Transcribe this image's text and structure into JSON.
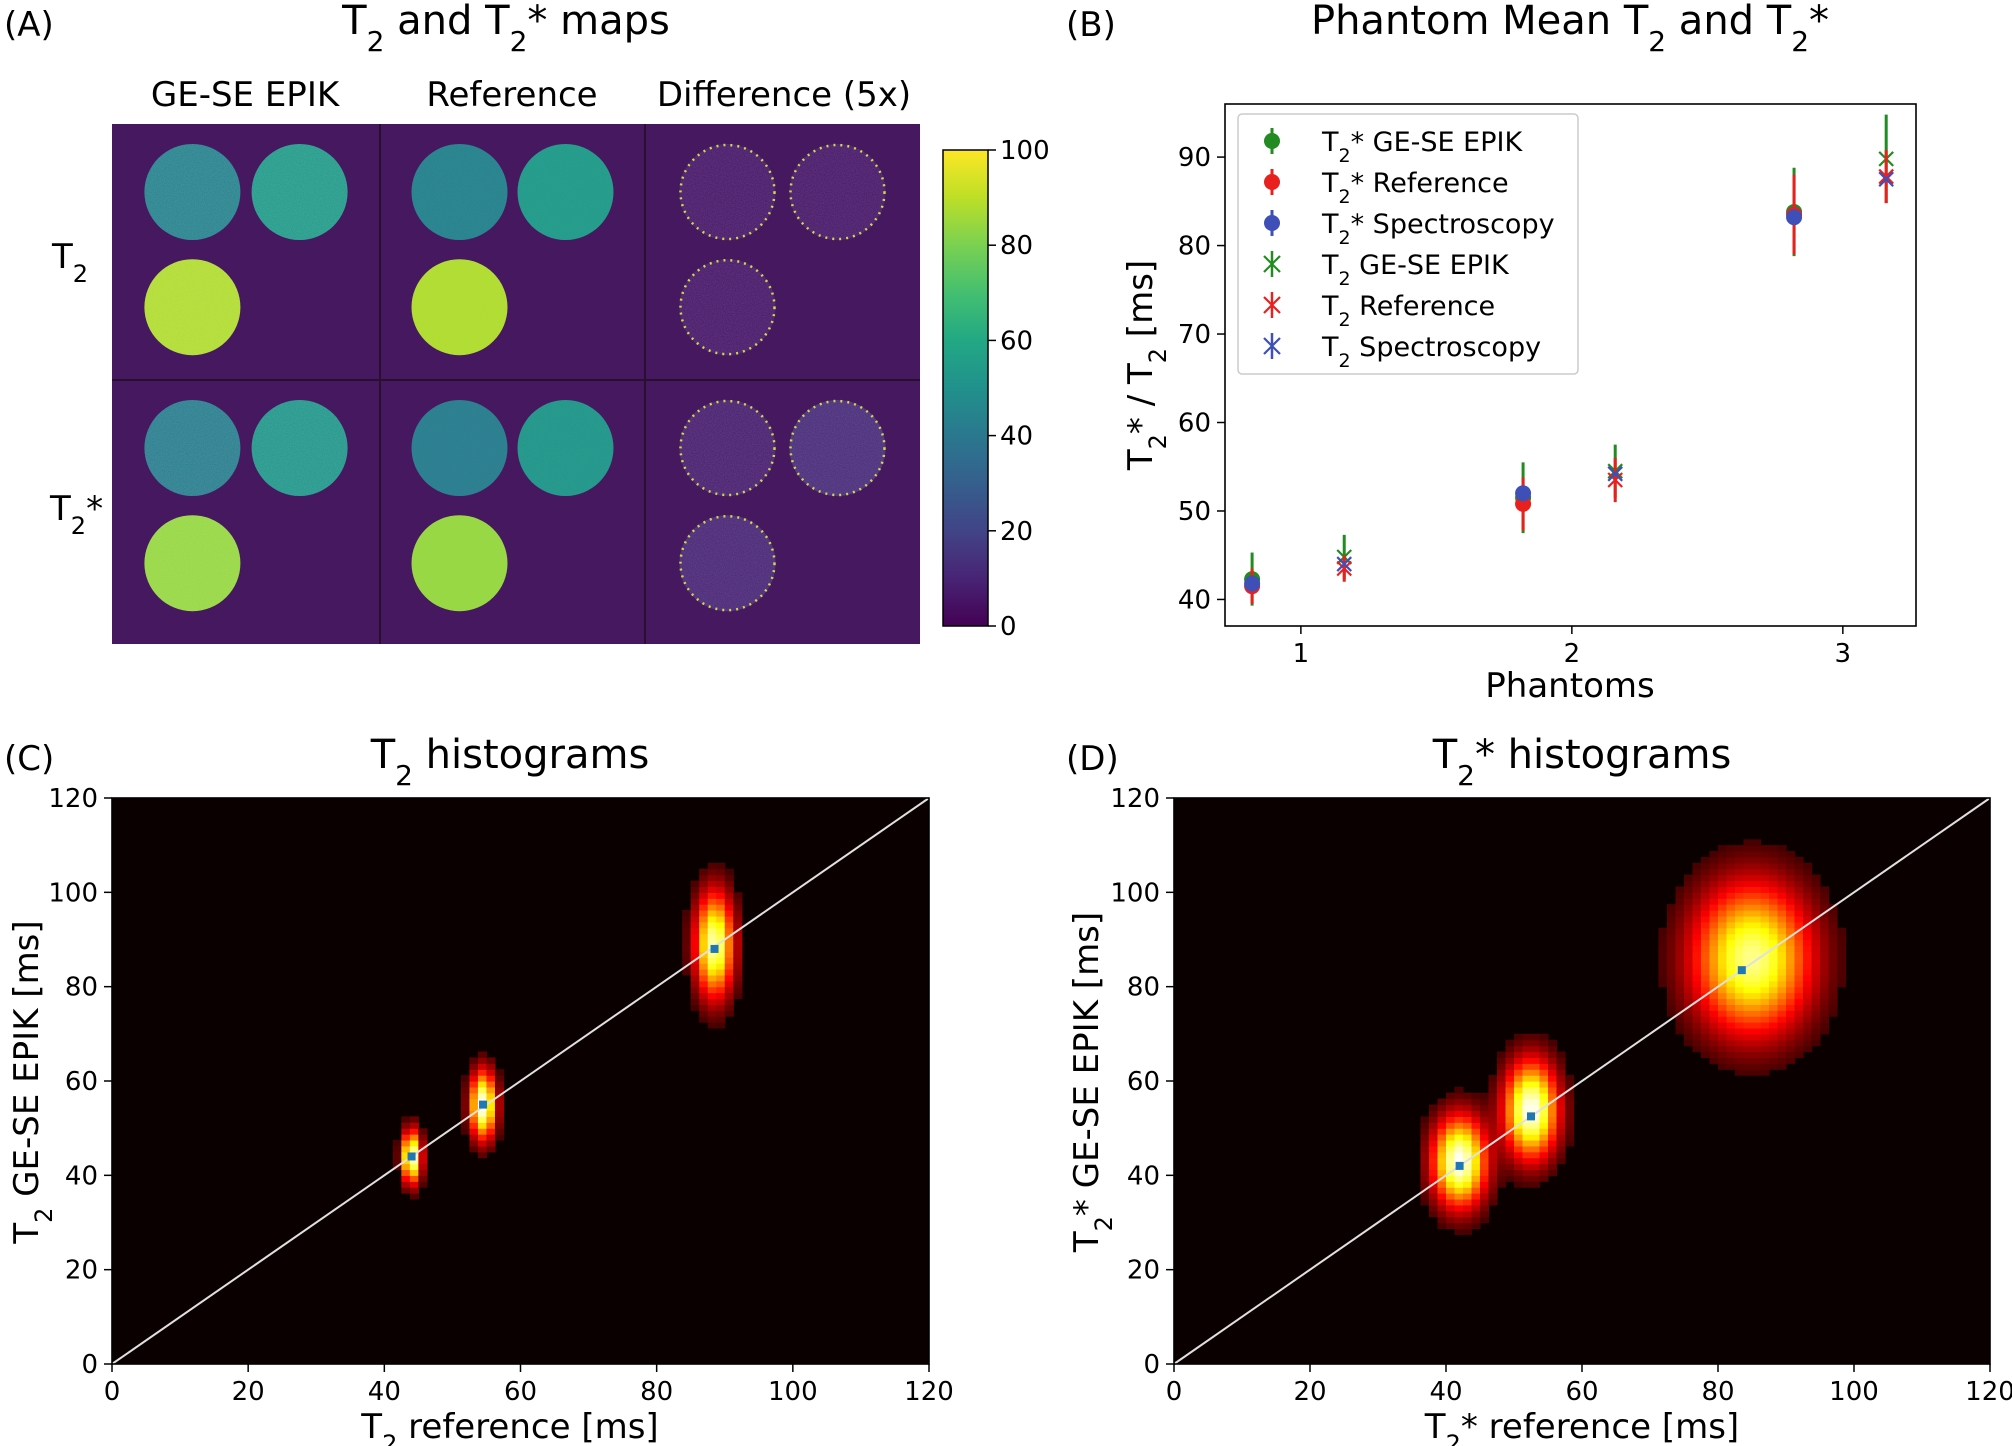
{
  "panels": {
    "a": {
      "label": "(A)",
      "title_t": "T",
      "title_sub": "2",
      "title_mid": " and T",
      "title_sub2": "2",
      "title_end": "* maps"
    },
    "b": {
      "label": "(B)",
      "title_pre": "Phantom Mean T",
      "title_sub": "2",
      "title_mid": " and T",
      "title_sub2": "2",
      "title_end": "*"
    },
    "c": {
      "label": "(C)",
      "title_t": "T",
      "title_sub": "2",
      "title_end": " histograms"
    },
    "d": {
      "label": "(D)",
      "title_t": "T",
      "title_sub": "2",
      "title_end": "* histograms"
    }
  },
  "colors": {
    "viridis_dark": "#440154",
    "bg_purple": "#46185f",
    "green": "#228b22",
    "red": "#e8211f",
    "blue": "#3e4fb8",
    "hist_bg": "#0b0000",
    "identity": "#e0e0e0",
    "mean_marker": "#1f77b4"
  },
  "chart_data": [
    {
      "type": "heatmap",
      "panel": "A",
      "columns": [
        "GE-SE EPIK",
        "Reference",
        "Difference (5x)"
      ],
      "rows": [
        {
          "t": "T",
          "sub": "2",
          "star": ""
        },
        {
          "t": "T",
          "sub": "2",
          "star": "*"
        }
      ],
      "colorbar": {
        "ticks": [
          "0",
          "20",
          "40",
          "60",
          "80",
          "100"
        ],
        "range": [
          0,
          100
        ]
      },
      "phantom_values": {
        "t2_epik": [
          44,
          54,
          88
        ],
        "t2_ref": [
          44,
          54,
          88
        ],
        "t2_diff": [
          6,
          6,
          6
        ],
        "t2s_epik": [
          42,
          52,
          84
        ],
        "t2s_ref": [
          42,
          52,
          84
        ],
        "t2s_diff": [
          8,
          12,
          10
        ]
      }
    },
    {
      "type": "scatter",
      "panel": "B",
      "xlabel": "Phantoms",
      "ylabel": "T₂* / T₂ [ms]",
      "xlim": [
        0.72,
        3.27
      ],
      "ylim": [
        37,
        96
      ],
      "xticks": [
        "1",
        "2",
        "3"
      ],
      "yticks": [
        "40",
        "50",
        "60",
        "70",
        "80",
        "90"
      ],
      "legend_position": "top-left",
      "series": [
        {
          "name_t": "T",
          "name_sub": "2",
          "name_rest": "* GE-SE EPIK",
          "marker": "circle",
          "color": "#228b22",
          "x": [
            0.82,
            1.82,
            2.82
          ],
          "y": [
            42.3,
            51.5,
            83.8
          ],
          "err": [
            3.0,
            4.0,
            5.0
          ]
        },
        {
          "name_t": "T",
          "name_sub": "2",
          "name_rest": "* Reference",
          "marker": "circle",
          "color": "#e8211f",
          "x": [
            0.82,
            1.82,
            2.82
          ],
          "y": [
            41.5,
            50.8,
            83.5
          ],
          "err": [
            2.0,
            3.0,
            4.5
          ]
        },
        {
          "name_t": "T",
          "name_sub": "2",
          "name_rest": "* Spectroscopy",
          "marker": "circle",
          "color": "#3e4fb8",
          "x": [
            0.82,
            1.82,
            2.82
          ],
          "y": [
            41.8,
            52.0,
            83.2
          ],
          "err": [
            0,
            0,
            0
          ]
        },
        {
          "name_t": "T",
          "name_sub": "2",
          "name_rest": " GE-SE EPIK",
          "marker": "x",
          "color": "#228b22",
          "x": [
            1.16,
            2.16,
            3.16
          ],
          "y": [
            44.8,
            54.5,
            89.8
          ],
          "err": [
            2.5,
            3.0,
            5.0
          ]
        },
        {
          "name_t": "T",
          "name_sub": "2",
          "name_rest": " Reference",
          "marker": "x",
          "color": "#e8211f",
          "x": [
            1.16,
            2.16,
            3.16
          ],
          "y": [
            43.5,
            53.5,
            87.8
          ],
          "err": [
            1.5,
            2.5,
            3.0
          ]
        },
        {
          "name_t": "T",
          "name_sub": "2",
          "name_rest": " Spectroscopy",
          "marker": "x",
          "color": "#3e4fb8",
          "x": [
            1.16,
            2.16,
            3.16
          ],
          "y": [
            44.0,
            54.2,
            87.5
          ],
          "err": [
            0,
            0,
            0
          ]
        }
      ]
    },
    {
      "type": "heatmap",
      "panel": "C",
      "xlabel_t": "T",
      "xlabel_sub": "2",
      "xlabel_rest": " reference [ms]",
      "ylabel_t": "T",
      "ylabel_sub": "2",
      "ylabel_rest": " GE-SE EPIK [ms]",
      "xlim": [
        0,
        120
      ],
      "ylim": [
        0,
        120
      ],
      "ticks": [
        "0",
        "20",
        "40",
        "60",
        "80",
        "100",
        "120"
      ],
      "identity_line": true,
      "clusters": [
        {
          "x": 44,
          "y": 44,
          "sx": 0.9,
          "sy": 3.5,
          "peak": 1.0
        },
        {
          "x": 54.5,
          "y": 55,
          "sx": 1.2,
          "sy": 4.5,
          "peak": 1.0
        },
        {
          "x": 88.5,
          "y": 89,
          "sx": 1.8,
          "sy": 7.0,
          "peak": 0.9
        }
      ],
      "means": [
        [
          44,
          44
        ],
        [
          54.5,
          55
        ],
        [
          88.5,
          88
        ]
      ]
    },
    {
      "type": "heatmap",
      "panel": "D",
      "xlabel_t": "T",
      "xlabel_sub": "2",
      "xlabel_rest": "* reference [ms]",
      "ylabel_t": "T",
      "ylabel_sub": "2",
      "ylabel_rest": "* GE-SE EPIK [ms]",
      "xlim": [
        0,
        120
      ],
      "ylim": [
        0,
        120
      ],
      "ticks": [
        "0",
        "20",
        "40",
        "60",
        "80",
        "100",
        "120"
      ],
      "identity_line": true,
      "clusters": [
        {
          "x": 42,
          "y": 43,
          "sx": 2.5,
          "sy": 6.0,
          "peak": 1.0
        },
        {
          "x": 52.5,
          "y": 54,
          "sx": 2.5,
          "sy": 6.5,
          "peak": 1.0
        },
        {
          "x": 85,
          "y": 86,
          "sx": 5.5,
          "sy": 10.0,
          "peak": 0.85
        }
      ],
      "means": [
        [
          42,
          42
        ],
        [
          52.5,
          52.5
        ],
        [
          83.5,
          83.5
        ]
      ]
    }
  ]
}
